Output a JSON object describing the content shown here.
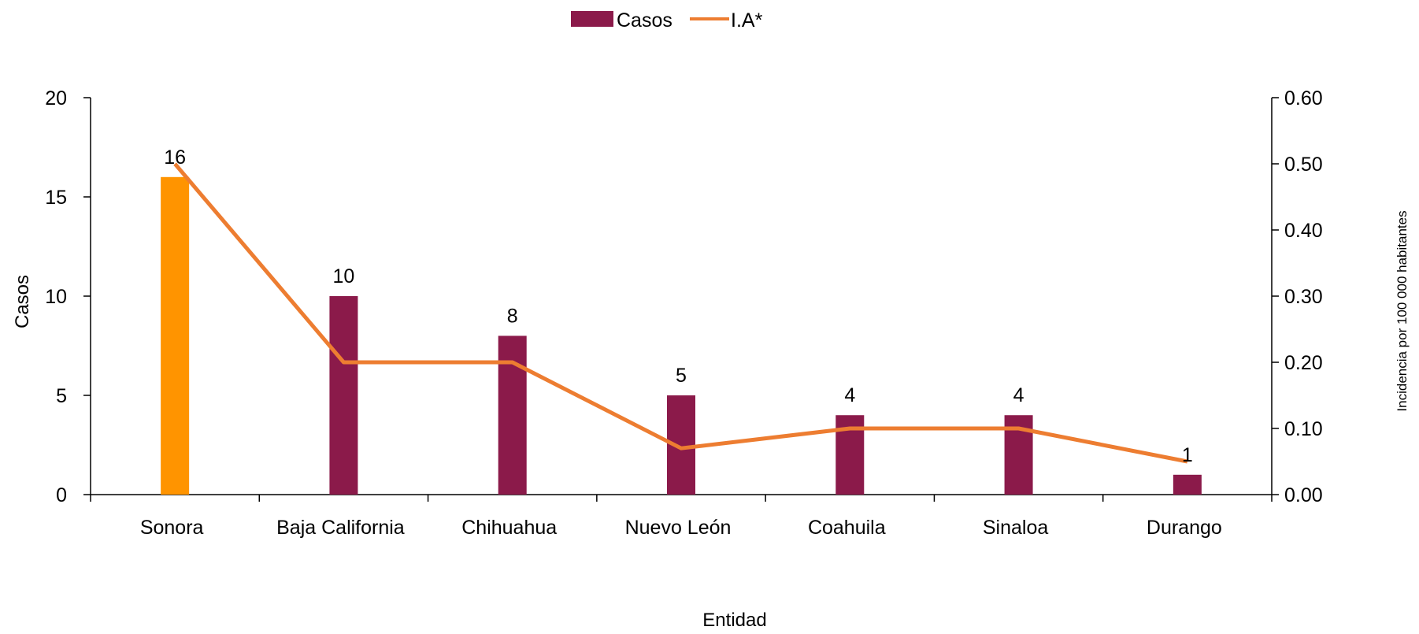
{
  "chart_data": {
    "type": "bar",
    "categories": [
      "Sonora",
      "Baja California",
      "Chihuahua",
      "Nuevo León",
      "Coahuila",
      "Sinaloa",
      "Durango"
    ],
    "series": [
      {
        "name": "Casos",
        "kind": "bar",
        "axis": "left",
        "values": [
          16,
          10,
          8,
          5,
          4,
          4,
          1
        ],
        "data_labels": [
          "16",
          "10",
          "8",
          "5",
          "4",
          "4",
          "1"
        ],
        "color": "#8B1A4A",
        "highlight": {
          "index": 0,
          "color": "#FF9400"
        }
      },
      {
        "name": "I.A*",
        "kind": "line",
        "axis": "right",
        "values": [
          0.5,
          0.2,
          0.2,
          0.07,
          0.1,
          0.1,
          0.05
        ],
        "color": "#ED7D31"
      }
    ],
    "xlabel": "Entidad",
    "ylabel": "Casos",
    "y2label": "Incidencia por 100 000 habitantes",
    "ylim": [
      0,
      20
    ],
    "y2lim": [
      0,
      0.6
    ],
    "yticks": [
      "0",
      "5",
      "10",
      "15",
      "20"
    ],
    "y2ticks": [
      "0.00",
      "0.10",
      "0.20",
      "0.30",
      "0.40",
      "0.50",
      "0.60"
    ],
    "legend_position": "top-center",
    "grid": false
  }
}
